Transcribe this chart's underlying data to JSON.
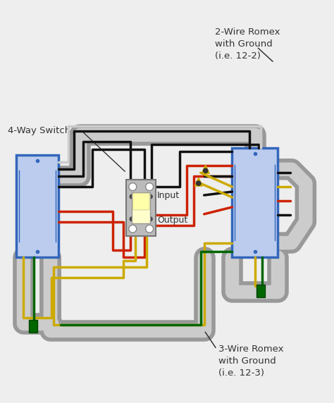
{
  "bg_color": "#eeeeee",
  "text_color": "#333333",
  "label_2wire": "2-Wire Romex\nwith Ground\n(i.e. 12-2)",
  "label_3wire": "3-Wire Romex\nwith Ground\n(i.e. 12-3)",
  "label_switch": "4-Way Switch",
  "label_input": "Input",
  "label_output": "Output",
  "wire_black": "#111111",
  "wire_red": "#cc2200",
  "wire_white": "#cccccc",
  "wire_yellow": "#ccaa00",
  "wire_green": "#006600",
  "conduit_outer": "#999999",
  "conduit_inner": "#cccccc",
  "box_edge": "#3366bb",
  "box_face": "#bbccee",
  "switch_body": "#bbbbbb",
  "switch_face": "#ffffcc"
}
